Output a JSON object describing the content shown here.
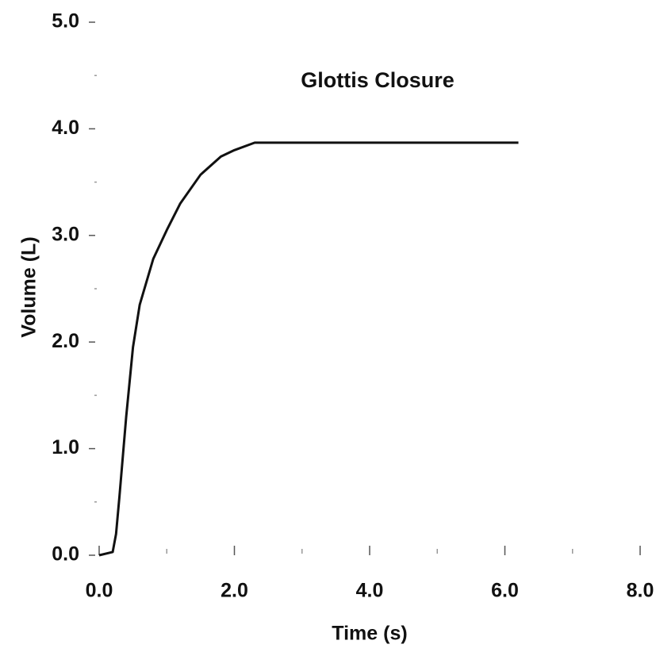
{
  "chart_data": {
    "type": "line",
    "title": "Glottis Closure",
    "x_label": "Time (s)",
    "y_label": "Volume (L)",
    "x": [
      0,
      0.2,
      0.25,
      0.3,
      0.4,
      0.5,
      0.6,
      0.8,
      1.0,
      1.2,
      1.5,
      1.8,
      2.0,
      2.3,
      6.2
    ],
    "series": [
      {
        "name": "Volume",
        "color": "#111111",
        "values": [
          0,
          0.03,
          0.2,
          0.55,
          1.3,
          1.95,
          2.35,
          2.78,
          3.05,
          3.3,
          3.57,
          3.74,
          3.8,
          3.87,
          3.87
        ]
      }
    ],
    "xlim": [
      0,
      8
    ],
    "ylim": [
      0,
      5
    ],
    "xticks": [
      {
        "value": 0,
        "label": "0.0"
      },
      {
        "value": 2,
        "label": "2.0"
      },
      {
        "value": 4,
        "label": "4.0"
      },
      {
        "value": 6,
        "label": "6.0"
      },
      {
        "value": 8,
        "label": "8.0"
      }
    ],
    "yticks": [
      {
        "value": 0,
        "label": "0.0"
      },
      {
        "value": 1,
        "label": "1.0"
      },
      {
        "value": 2,
        "label": "2.0"
      },
      {
        "value": 3,
        "label": "3.0"
      },
      {
        "value": 4,
        "label": "4.0"
      },
      {
        "value": 5,
        "label": "5.0"
      }
    ],
    "xminorticks": [
      1,
      3,
      5,
      7
    ],
    "yminorticks": [
      0.5,
      1.5,
      2.5,
      3.5,
      4.5
    ]
  }
}
